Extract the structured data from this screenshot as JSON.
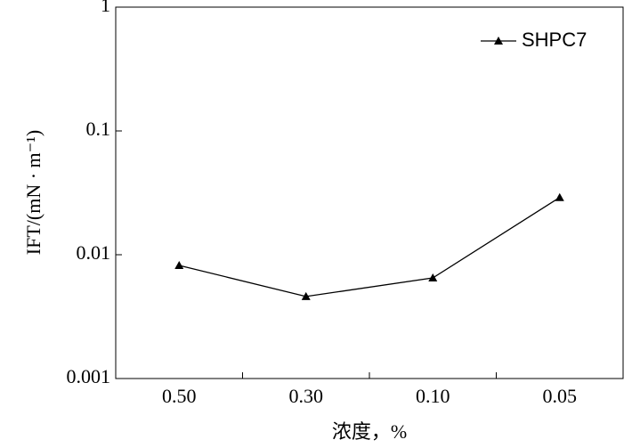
{
  "chart_data": {
    "type": "line",
    "x_label": "浓度，%",
    "y_label": "IFT/(mN · m⁻¹)",
    "categories": [
      "0.50",
      "0.30",
      "0.10",
      "0.05"
    ],
    "series": [
      {
        "name": "SHPC7",
        "color": "#000000",
        "values": [
          0.0082,
          0.0046,
          0.0065,
          0.029
        ]
      }
    ],
    "log_y": true,
    "ylim": [
      0.001,
      1
    ],
    "yticks": [
      0.001,
      0.01,
      0.1,
      1
    ],
    "legend": "upper right"
  }
}
